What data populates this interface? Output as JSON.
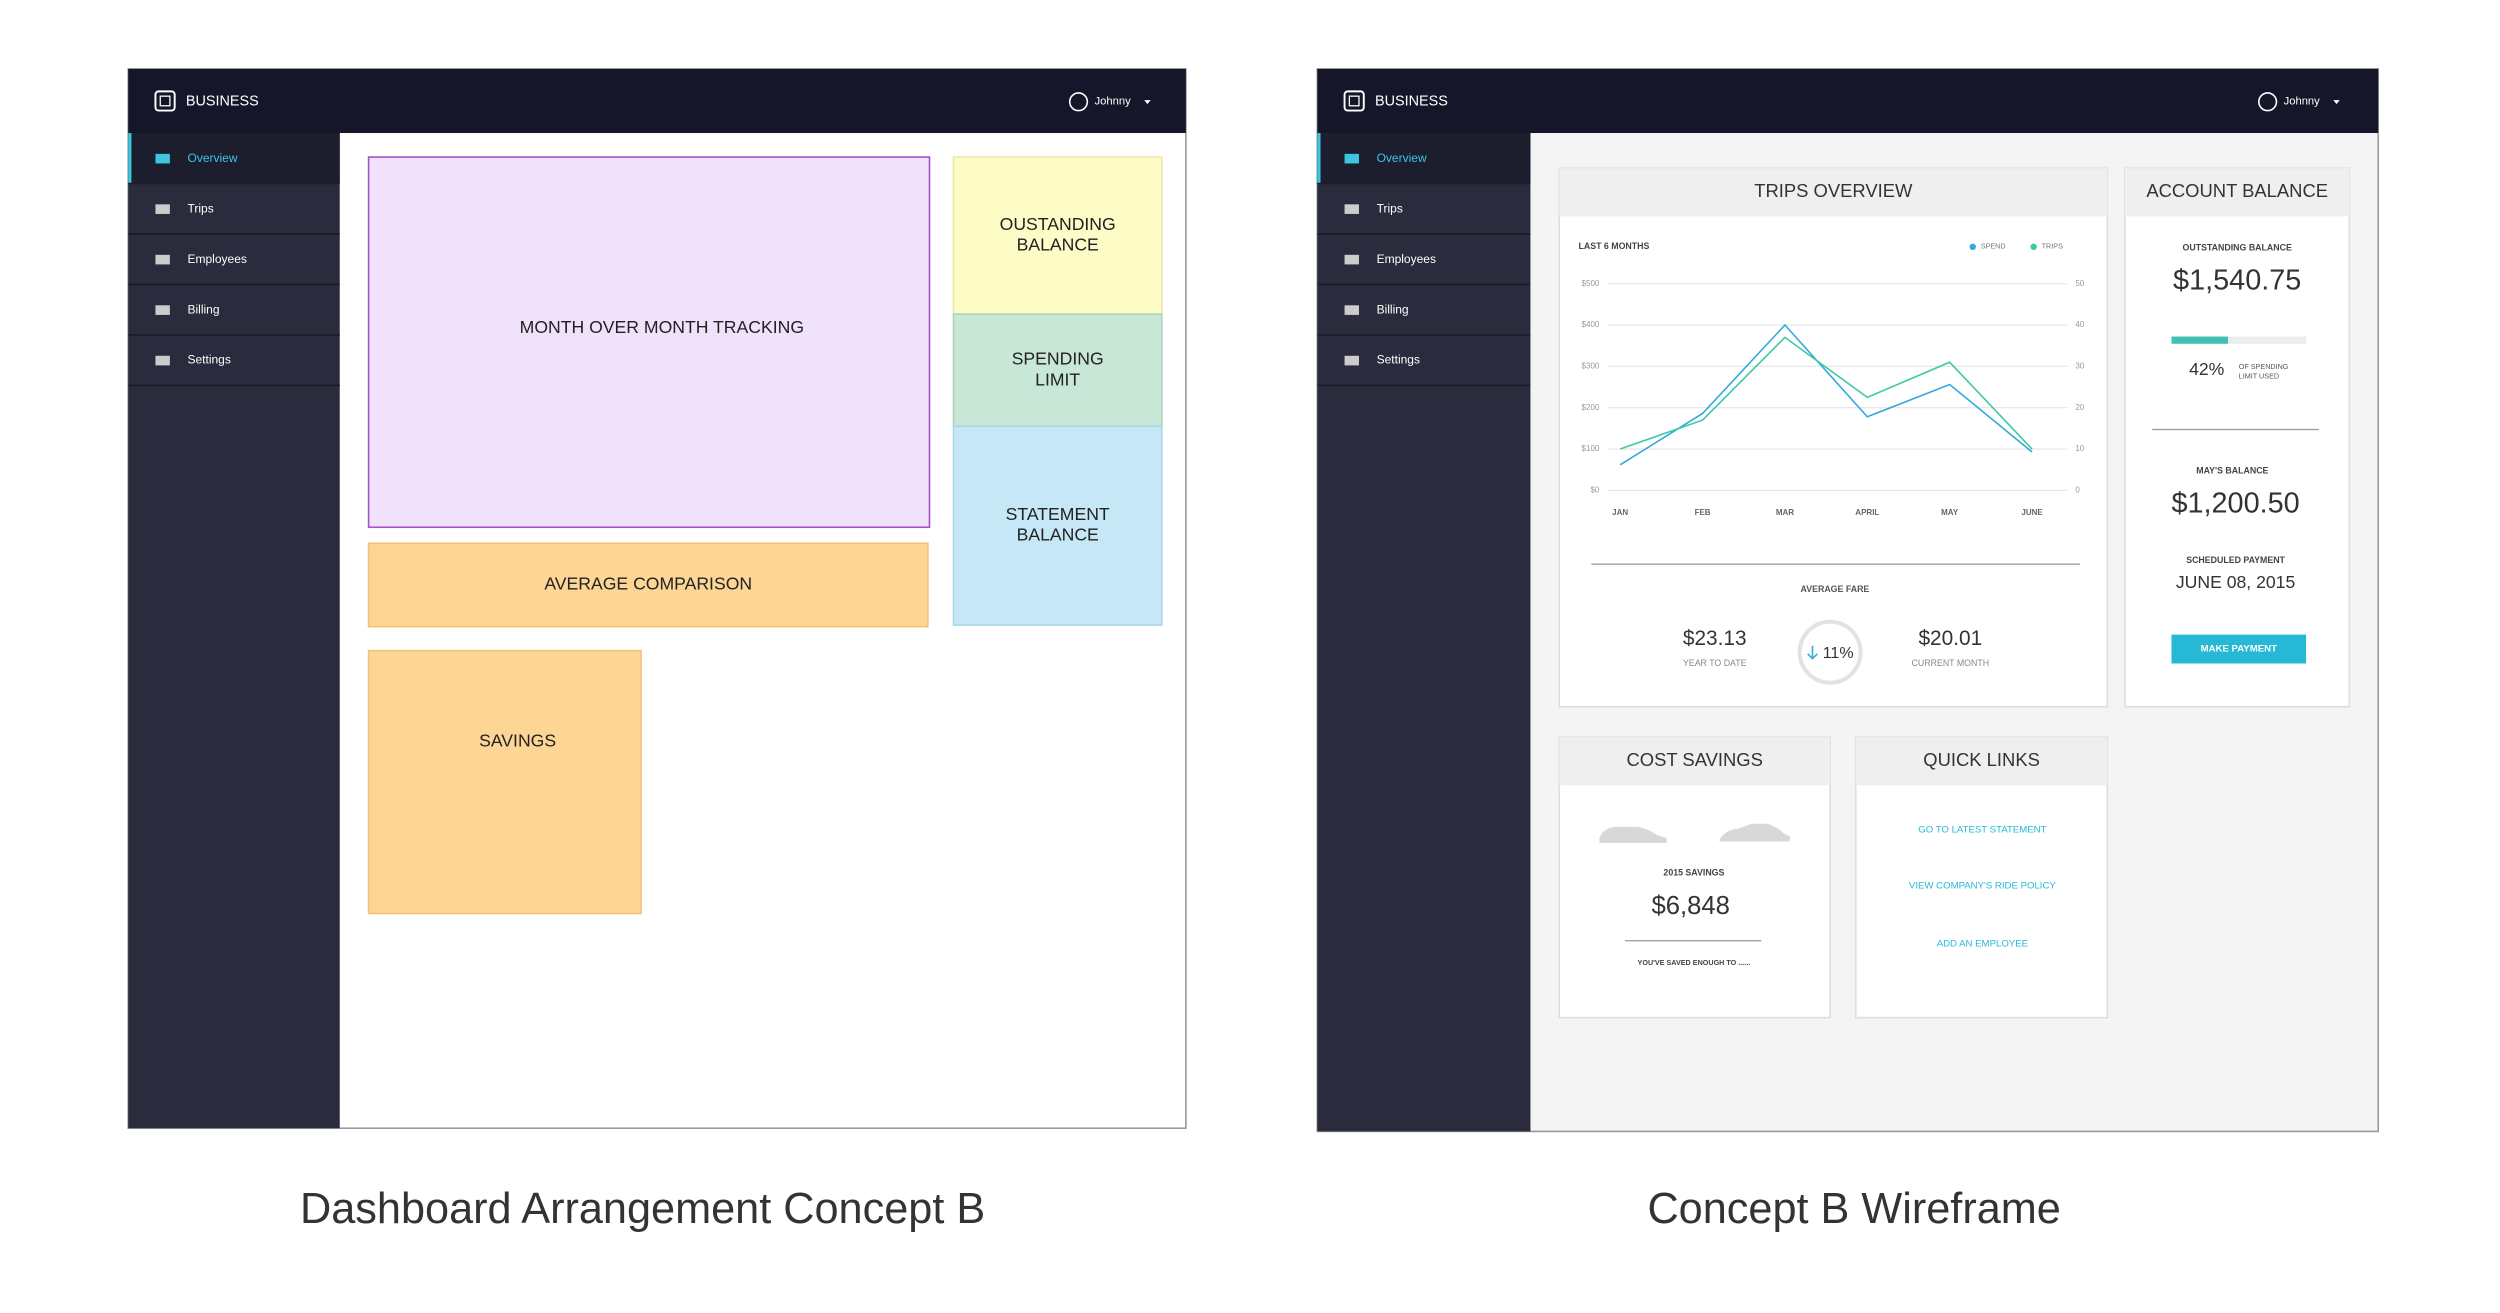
{
  "concept": {
    "brand": "BUSINESS",
    "user": "Johnny",
    "nav": [
      "Overview",
      "Trips",
      "Employees",
      "Billing",
      "Settings"
    ],
    "blocks": {
      "month_tracking": [
        "MONTH OVER MONTH TRACKING"
      ],
      "average_comparison": [
        "AVERAGE COMPARISON"
      ],
      "savings": [
        "SAVINGS"
      ],
      "outstanding_balance": [
        "OUSTANDING",
        "BALANCE"
      ],
      "spending_limit": [
        "SPENDING",
        "LIMIT"
      ],
      "statement_balance": [
        "STATEMENT",
        "BALANCE"
      ]
    },
    "caption": "Dashboard Arrangement Concept B"
  },
  "wireframe": {
    "brand": "BUSINESS",
    "user": "Johnny",
    "nav": [
      "Overview",
      "Trips",
      "Employees",
      "Billing",
      "Settings"
    ],
    "trips_overview": {
      "title": "TRIPS OVERVIEW",
      "period": "LAST 6 MONTHS",
      "chart": {
        "type": "line",
        "categories": [
          "JAN",
          "FEB",
          "MAR",
          "APRIL",
          "MAY",
          "JUNE"
        ],
        "series": [
          {
            "name": "SPEND",
            "color": "#33a9dc",
            "values": [
              62,
              186,
              400,
              178,
              256,
              93
            ]
          },
          {
            "name": "TRIPS",
            "color": "#3cc9a4",
            "axis": "y2",
            "values": [
              10,
              17,
              37,
              22.5,
              31,
              10
            ]
          }
        ],
        "ylim": [
          0,
          500
        ],
        "yticks": [
          {
            "value": 500,
            "label": "$500"
          },
          {
            "value": 400,
            "label": "$400"
          },
          {
            "value": 300,
            "label": "$300"
          },
          {
            "value": 200,
            "label": "$200"
          },
          {
            "value": 100,
            "label": "$100"
          },
          {
            "value": 0,
            "label": "$0"
          }
        ],
        "y2lim": [
          0,
          50
        ],
        "y2ticks": [
          50,
          40,
          30,
          20,
          10,
          0
        ],
        "grid": true
      },
      "average_fare_label": "AVERAGE FARE",
      "year_to_date": {
        "amount": "$23.13",
        "label": "YEAR TO DATE"
      },
      "change": "11%",
      "current_month": {
        "amount": "$20.01",
        "label": "CURRENT MONTH"
      }
    },
    "account_balance": {
      "title": "ACCOUNT BALANCE",
      "outstanding_label": "OUTSTANDING BALANCE",
      "outstanding": "$1,540.75",
      "limit_used": {
        "value": 42,
        "label": "42%"
      },
      "limit_used_caption": [
        "OF SPENDING",
        "LIMIT USED"
      ],
      "may_label": "MAY'S BALANCE",
      "may_balance": "$1,200.50",
      "scheduled_label": "SCHEDULED PAYMENT",
      "scheduled_date": "JUNE 08, 2015",
      "button": "MAKE PAYMENT"
    },
    "cost_savings": {
      "title": "COST SAVINGS",
      "label": "2015 SAVINGS",
      "amount": "$6,848",
      "note": "YOU'VE SAVED ENOUGH TO ......"
    },
    "quick_links": {
      "title": "QUICK LINKS",
      "links": [
        "GO TO LATEST STATEMENT",
        "VIEW COMPANY'S RIDE POLICY",
        "ADD AN EMPLOYEE"
      ]
    },
    "caption": "Concept B Wireframe"
  }
}
